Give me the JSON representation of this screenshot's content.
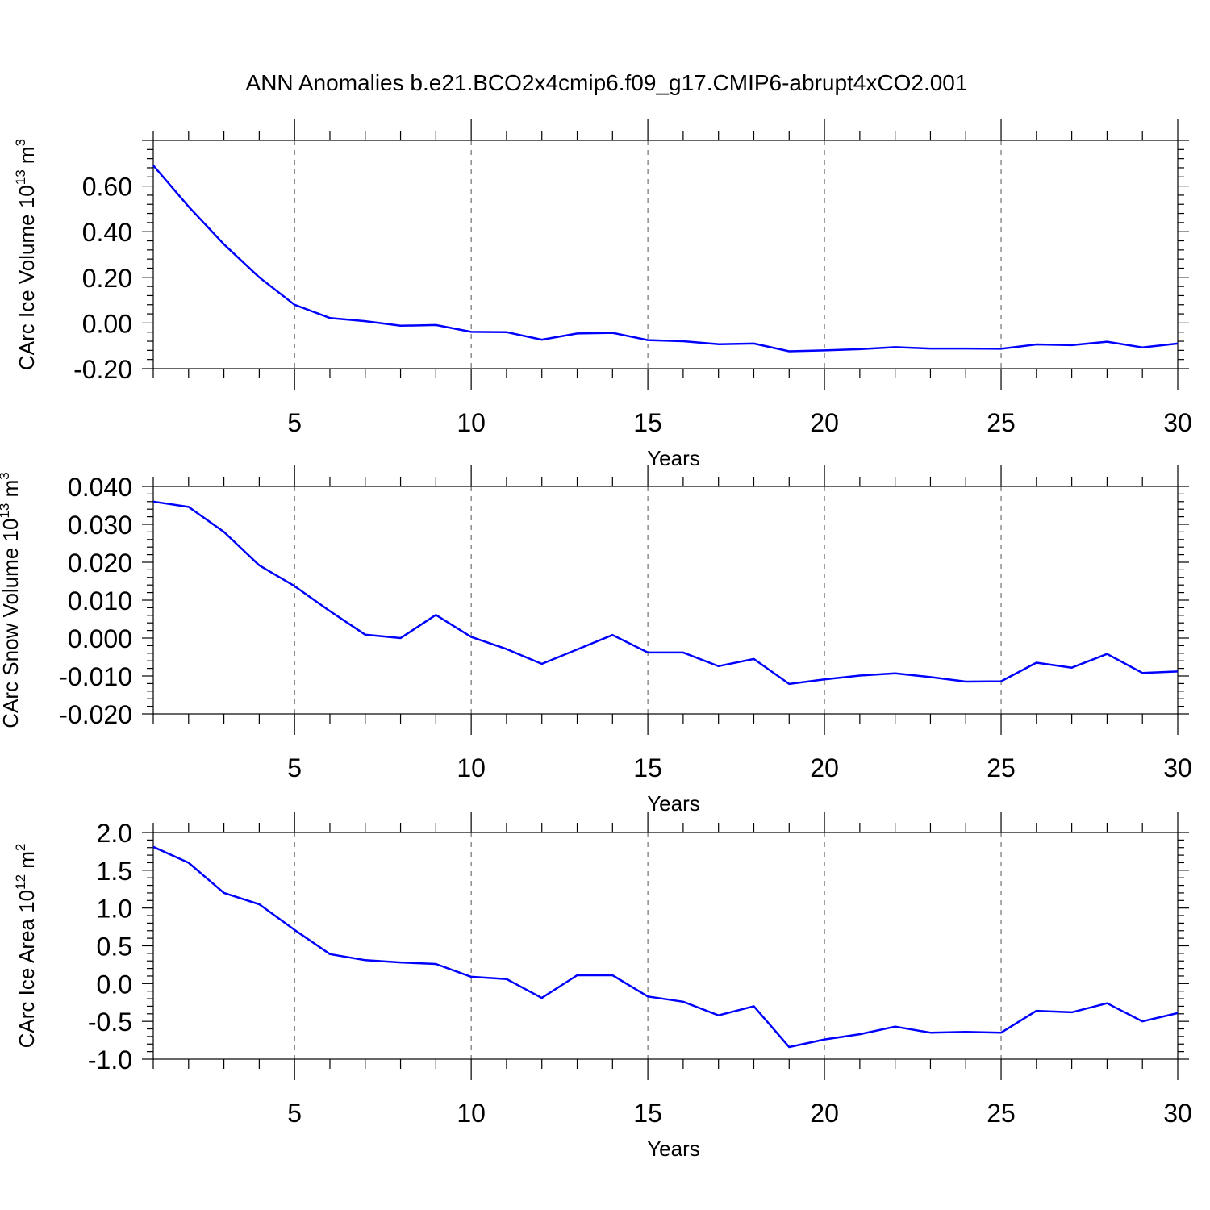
{
  "title": "ANN Anomalies b.e21.BCO2x4cmip6.f09_g17.CMIP6-abrupt4xCO2.001",
  "colors": {
    "line": "#0000ff",
    "axis": "#000000",
    "grid": "#555555"
  },
  "chart_data": [
    {
      "type": "line",
      "xlabel": "Years",
      "ylabel": {
        "text": "CArc Ice Volume 10",
        "sup": "13",
        "unit": " m",
        "unit_sup": "3"
      },
      "xlim": [
        1,
        30
      ],
      "ylim": [
        -0.2,
        0.8
      ],
      "x_ticks": [
        5,
        10,
        15,
        20,
        25,
        30
      ],
      "y_ticks": [
        -0.2,
        0.0,
        0.2,
        0.4,
        0.6
      ],
      "y_tick_labels": [
        "-0.20",
        "0.00",
        "0.20",
        "0.40",
        "0.60"
      ],
      "grid": "vertical dashed at major x ticks",
      "x": [
        1,
        2,
        3,
        4,
        5,
        6,
        7,
        8,
        9,
        10,
        11,
        12,
        13,
        14,
        15,
        16,
        17,
        18,
        19,
        20,
        21,
        22,
        23,
        24,
        25,
        26,
        27,
        28,
        29,
        30
      ],
      "values": [
        0.69,
        0.51,
        0.345,
        0.2,
        0.08,
        0.022,
        0.008,
        -0.012,
        -0.009,
        -0.039,
        -0.04,
        -0.073,
        -0.046,
        -0.043,
        -0.075,
        -0.08,
        -0.093,
        -0.09,
        -0.124,
        -0.12,
        -0.115,
        -0.106,
        -0.112,
        -0.112,
        -0.113,
        -0.094,
        -0.097,
        -0.082,
        -0.107,
        -0.09
      ]
    },
    {
      "type": "line",
      "xlabel": "Years",
      "ylabel": {
        "text": "CArc Snow Volume 10",
        "sup": "13",
        "unit": " m",
        "unit_sup": "3"
      },
      "xlim": [
        1,
        30
      ],
      "ylim": [
        -0.02,
        0.04
      ],
      "x_ticks": [
        5,
        10,
        15,
        20,
        25,
        30
      ],
      "y_ticks": [
        -0.02,
        -0.01,
        0.0,
        0.01,
        0.02,
        0.03,
        0.04
      ],
      "y_tick_labels": [
        "-0.020",
        "-0.010",
        "0.000",
        "0.010",
        "0.020",
        "0.030",
        "0.040"
      ],
      "grid": "vertical dashed at major x ticks",
      "x": [
        1,
        2,
        3,
        4,
        5,
        6,
        7,
        8,
        9,
        10,
        11,
        12,
        13,
        14,
        15,
        16,
        17,
        18,
        19,
        20,
        21,
        22,
        23,
        24,
        25,
        26,
        27,
        28,
        29,
        30
      ],
      "values": [
        0.036,
        0.0346,
        0.028,
        0.0192,
        0.0137,
        0.0071,
        0.0009,
        0.0,
        0.0061,
        0.0003,
        -0.0029,
        -0.0068,
        -0.003,
        0.0008,
        -0.0038,
        -0.0038,
        -0.0074,
        -0.0055,
        -0.0121,
        -0.0109,
        -0.0099,
        -0.0093,
        -0.0103,
        -0.0115,
        -0.0114,
        -0.0065,
        -0.0078,
        -0.0042,
        -0.0092,
        -0.0088
      ]
    },
    {
      "type": "line",
      "xlabel": "Years",
      "ylabel": {
        "text": "CArc Ice Area 10",
        "sup": "12",
        "unit": " m",
        "unit_sup": "2"
      },
      "xlim": [
        1,
        30
      ],
      "ylim": [
        -1.0,
        2.0
      ],
      "x_ticks": [
        5,
        10,
        15,
        20,
        25,
        30
      ],
      "y_ticks": [
        -1.0,
        -0.5,
        0.0,
        0.5,
        1.0,
        1.5,
        2.0
      ],
      "y_tick_labels": [
        "-1.0",
        "-0.5",
        "0.0",
        "0.5",
        "1.0",
        "1.5",
        "2.0"
      ],
      "grid": "vertical dashed at major x ticks",
      "x": [
        1,
        2,
        3,
        4,
        5,
        6,
        7,
        8,
        9,
        10,
        11,
        12,
        13,
        14,
        15,
        16,
        17,
        18,
        19,
        20,
        21,
        22,
        23,
        24,
        25,
        26,
        27,
        28,
        29,
        30
      ],
      "values": [
        1.81,
        1.6,
        1.2,
        1.05,
        0.71,
        0.39,
        0.31,
        0.28,
        0.26,
        0.09,
        0.06,
        -0.19,
        0.11,
        0.11,
        -0.17,
        -0.24,
        -0.42,
        -0.3,
        -0.84,
        -0.74,
        -0.67,
        -0.57,
        -0.65,
        -0.64,
        -0.65,
        -0.36,
        -0.38,
        -0.26,
        -0.5,
        -0.39
      ]
    }
  ]
}
